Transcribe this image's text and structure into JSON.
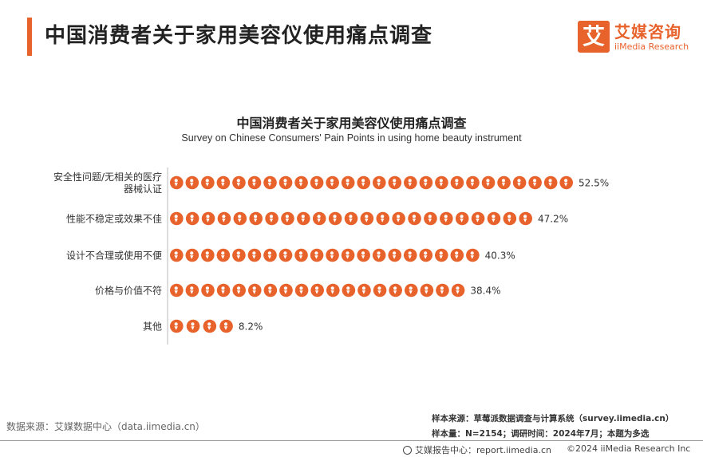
{
  "page": {
    "title": "中国消费者关于家用美容仪使用痛点调查"
  },
  "logo": {
    "mark": "艾",
    "name_cn": "艾媒咨询",
    "name_en": "iiMedia Research"
  },
  "chart_data": {
    "type": "bar",
    "orientation": "horizontal",
    "style": "pictograph",
    "title": "中国消费者关于家用美容仪使用痛点调查",
    "subtitle": "Survey on Chinese Consumers' Pain Points in using home beauty instrument",
    "categories": [
      "安全性问题/无相关的医疗器械认证",
      "性能不稳定或效果不佳",
      "设计不合理或使用不便",
      "价格与价值不符",
      "其他"
    ],
    "category_lines": [
      [
        "安全性问题/无相关的医疗",
        "器械认证"
      ],
      [
        "性能不稳定或效果不佳"
      ],
      [
        "设计不合理或使用不便"
      ],
      [
        "价格与价值不符"
      ],
      [
        "其他"
      ]
    ],
    "values": [
      52.5,
      47.2,
      40.3,
      38.4,
      8.2
    ],
    "value_labels": [
      "52.5%",
      "47.2%",
      "40.3%",
      "38.4%",
      "8.2%"
    ],
    "xlim": [
      0,
      52.5
    ],
    "grid": false,
    "colors": {
      "icon": "#e8622b",
      "icon_hole": "#ffffff"
    }
  },
  "source": {
    "left": "数据来源：艾媒数据中心（data.iimedia.cn）",
    "sample_source": "样本来源：草莓派数据调查与计算系统（survey.iimedia.cn）",
    "sample_info": "样本量：N=2154；调研时间：2024年7月；本题为多选"
  },
  "footer": {
    "left": "艾媒报告中心：report.iimedia.cn",
    "right": "©2024  iiMedia Research  Inc"
  }
}
